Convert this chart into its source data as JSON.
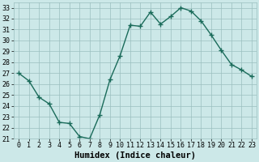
{
  "x": [
    0,
    1,
    2,
    3,
    4,
    5,
    6,
    7,
    8,
    9,
    10,
    11,
    12,
    13,
    14,
    15,
    16,
    17,
    18,
    19,
    20,
    21,
    22,
    23
  ],
  "y": [
    27.0,
    26.3,
    24.8,
    24.2,
    22.5,
    22.4,
    21.2,
    21.0,
    23.2,
    26.4,
    28.6,
    31.4,
    31.3,
    32.6,
    31.5,
    32.2,
    33.0,
    32.7,
    31.8,
    30.5,
    29.1,
    27.8,
    27.3,
    26.7
  ],
  "line_color": "#1a6b5a",
  "marker": "+",
  "marker_size": 4,
  "marker_linewidth": 1.0,
  "linewidth": 1.0,
  "bg_color": "#cce8e8",
  "grid_color": "#9bbfbf",
  "xlabel": "Humidex (Indice chaleur)",
  "xlim": [
    -0.5,
    23.5
  ],
  "ylim": [
    21,
    33.5
  ],
  "yticks": [
    21,
    22,
    23,
    24,
    25,
    26,
    27,
    28,
    29,
    30,
    31,
    32,
    33
  ],
  "xticks": [
    0,
    1,
    2,
    3,
    4,
    5,
    6,
    7,
    8,
    9,
    10,
    11,
    12,
    13,
    14,
    15,
    16,
    17,
    18,
    19,
    20,
    21,
    22,
    23
  ],
  "tick_fontsize": 6.0,
  "xlabel_fontsize": 7.5,
  "xlabel_fontweight": "bold"
}
